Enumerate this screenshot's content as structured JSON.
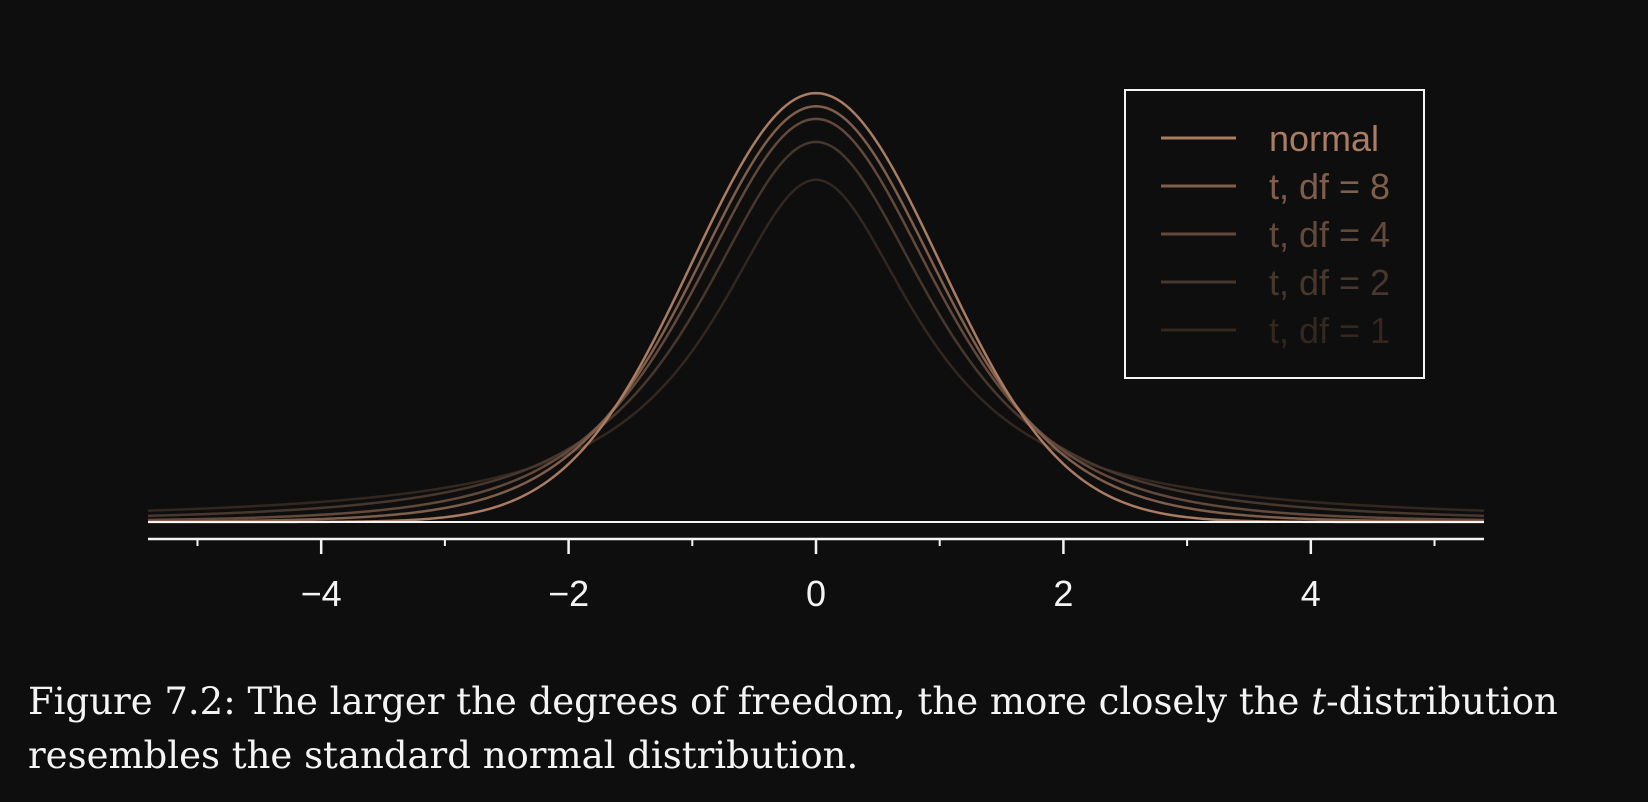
{
  "chart_data": {
    "type": "line",
    "title": "",
    "xlabel": "",
    "ylabel": "",
    "xlim": [
      -5.4,
      5.4
    ],
    "x_ticks": [
      -4,
      -2,
      0,
      2,
      4
    ],
    "x_tick_labels": [
      "−4",
      "−2",
      "0",
      "2",
      "4"
    ],
    "x_minor_ticks": [
      -5,
      -3,
      -1,
      1,
      3,
      5
    ],
    "legend_position": "top-right",
    "grid": false,
    "series": [
      {
        "name": "normal",
        "dist": "normal",
        "df": null,
        "color": "#a97c63"
      },
      {
        "name": "t, df = 8",
        "dist": "t",
        "df": 8,
        "color": "#7f5e4b"
      },
      {
        "name": "t, df = 4",
        "dist": "t",
        "df": 4,
        "color": "#62493b"
      },
      {
        "name": "t, df = 2",
        "dist": "t",
        "df": 2,
        "color": "#48372d"
      },
      {
        "name": "t, df = 1",
        "dist": "t",
        "df": 1,
        "color": "#33271f"
      }
    ]
  },
  "caption": {
    "label": "Figure 7.2:",
    "text_before": "The larger the degrees of freedom, the more closely the",
    "t_symbol": "t",
    "text_after": "-distribution resembles the standard normal distribution."
  },
  "colors": {
    "background": "#0e0e0e",
    "axis": "#f4f4f4"
  }
}
